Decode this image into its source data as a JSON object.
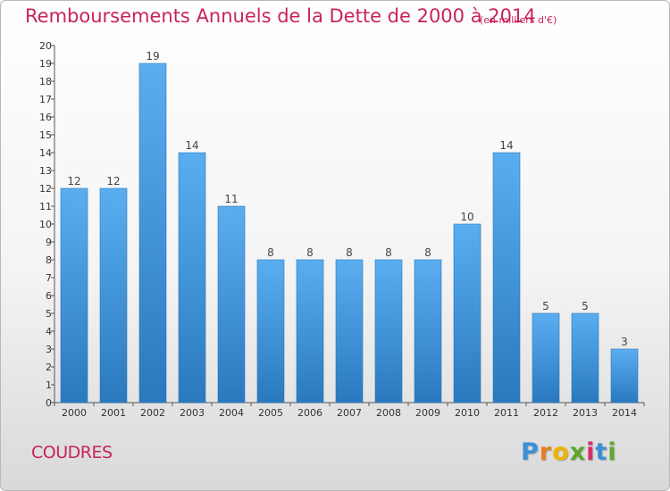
{
  "chart_data": {
    "type": "bar",
    "title": "Remboursements Annuels de la Dette de 2000 à 2014",
    "subtitle": "(en milliers d'€)",
    "categories": [
      "2000",
      "2001",
      "2002",
      "2003",
      "2004",
      "2005",
      "2006",
      "2007",
      "2008",
      "2009",
      "2010",
      "2011",
      "2012",
      "2013",
      "2014"
    ],
    "values": [
      12,
      12,
      19,
      14,
      11,
      8,
      8,
      8,
      8,
      8,
      10,
      14,
      5,
      5,
      3
    ],
    "ylim": [
      0,
      20
    ],
    "yticks": [
      "0",
      "1",
      "2",
      "3",
      "4",
      "5",
      "6",
      "7",
      "8",
      "9",
      "10",
      "11",
      "12",
      "13",
      "14",
      "15",
      "16",
      "17",
      "18",
      "19",
      "20"
    ],
    "grid": false,
    "bar_color": "#4a9fe0",
    "bar_color_dark": "#2f7fc4"
  },
  "footer": {
    "commune": "COUDRES",
    "brand": [
      "P",
      "r",
      "o",
      "x",
      "i",
      "t",
      "i"
    ]
  },
  "colors": {
    "title": "#c8235a"
  }
}
